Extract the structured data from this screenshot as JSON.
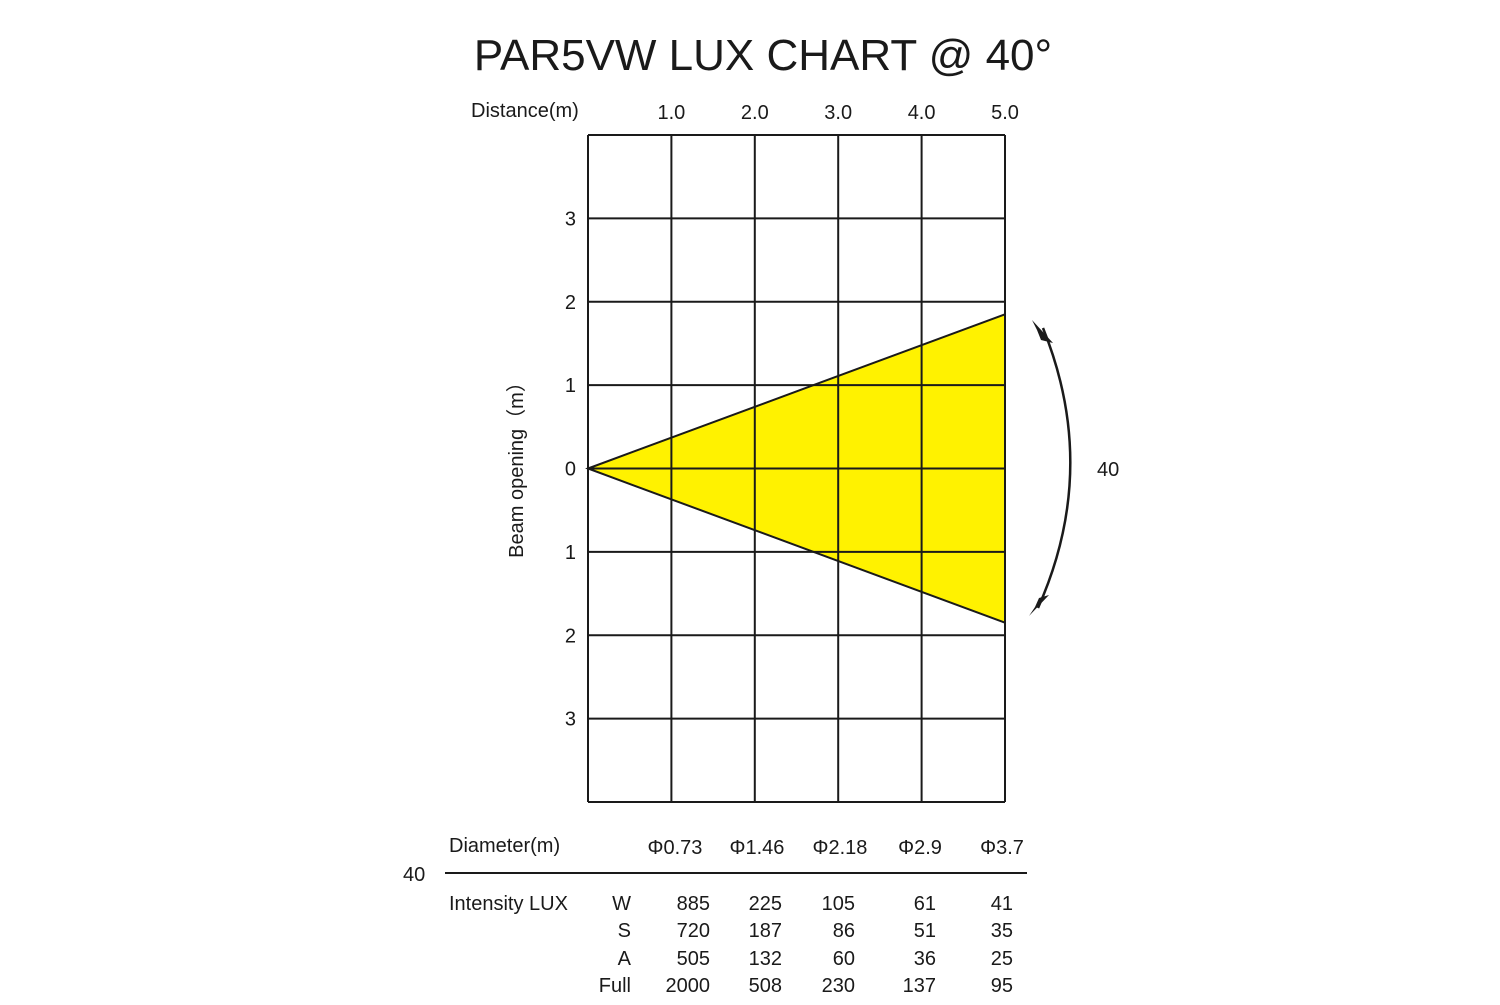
{
  "chart_data": {
    "type": "area",
    "title": "PAR5VW LUX CHART @ 40°",
    "xlabel": "Distance(m)",
    "ylabel": "Beam opening（m）",
    "x_ticks": [
      "1.0",
      "2.0",
      "3.0",
      "4.0",
      "5.0"
    ],
    "y_ticks": [
      "3",
      "2",
      "1",
      "0",
      "1",
      "2",
      "3"
    ],
    "xlim": [
      0,
      5
    ],
    "ylim": [
      -4,
      4
    ],
    "grid": true,
    "beam_angle": 40,
    "beam_angle_label": "40",
    "beam_color": "#fff200",
    "distances": [
      1,
      2,
      3,
      4,
      5
    ],
    "diameter_label": "Diameter(m)",
    "diameters": [
      0.73,
      1.46,
      2.18,
      2.9,
      3.7
    ],
    "diameter_labels": [
      "Φ0.73",
      "Φ1.46",
      "Φ2.18",
      "Φ2.9",
      "Φ3.7"
    ],
    "table_angle_label": "40",
    "intensity_label": "Intensity LUX",
    "intensity": [
      {
        "name": "W",
        "values": [
          "885",
          "225",
          "105",
          "61",
          "41"
        ]
      },
      {
        "name": "S",
        "values": [
          "720",
          "187",
          "86",
          "51",
          "35"
        ]
      },
      {
        "name": "A",
        "values": [
          "505",
          "132",
          "60",
          "36",
          "25"
        ]
      },
      {
        "name": "Full",
        "values": [
          "2000",
          "508",
          "230",
          "137",
          "95"
        ]
      }
    ]
  }
}
